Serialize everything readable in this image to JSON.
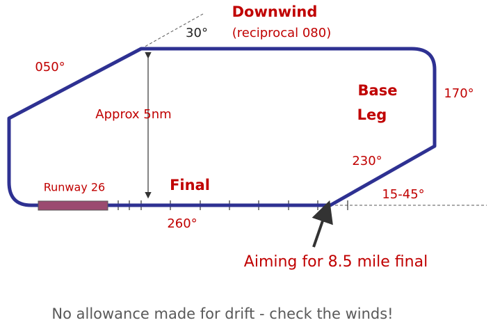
{
  "diagram": {
    "legs": {
      "downwind": {
        "title": "Downwind",
        "note": "(reciprocal 080)",
        "angle": "30°"
      },
      "base": {
        "title_line1": "Base",
        "title_line2": "Leg",
        "heading": "170°",
        "turn": "230°"
      },
      "final": {
        "title": "Final",
        "heading": "260°",
        "runway": "Runway 26",
        "intercept": "15-45°"
      },
      "crosswind": {
        "heading": "050°"
      }
    },
    "distance": "Approx 5nm",
    "aim": "Aiming for 8.5 mile final",
    "footer": "No allowance made for drift - check the winds!"
  }
}
